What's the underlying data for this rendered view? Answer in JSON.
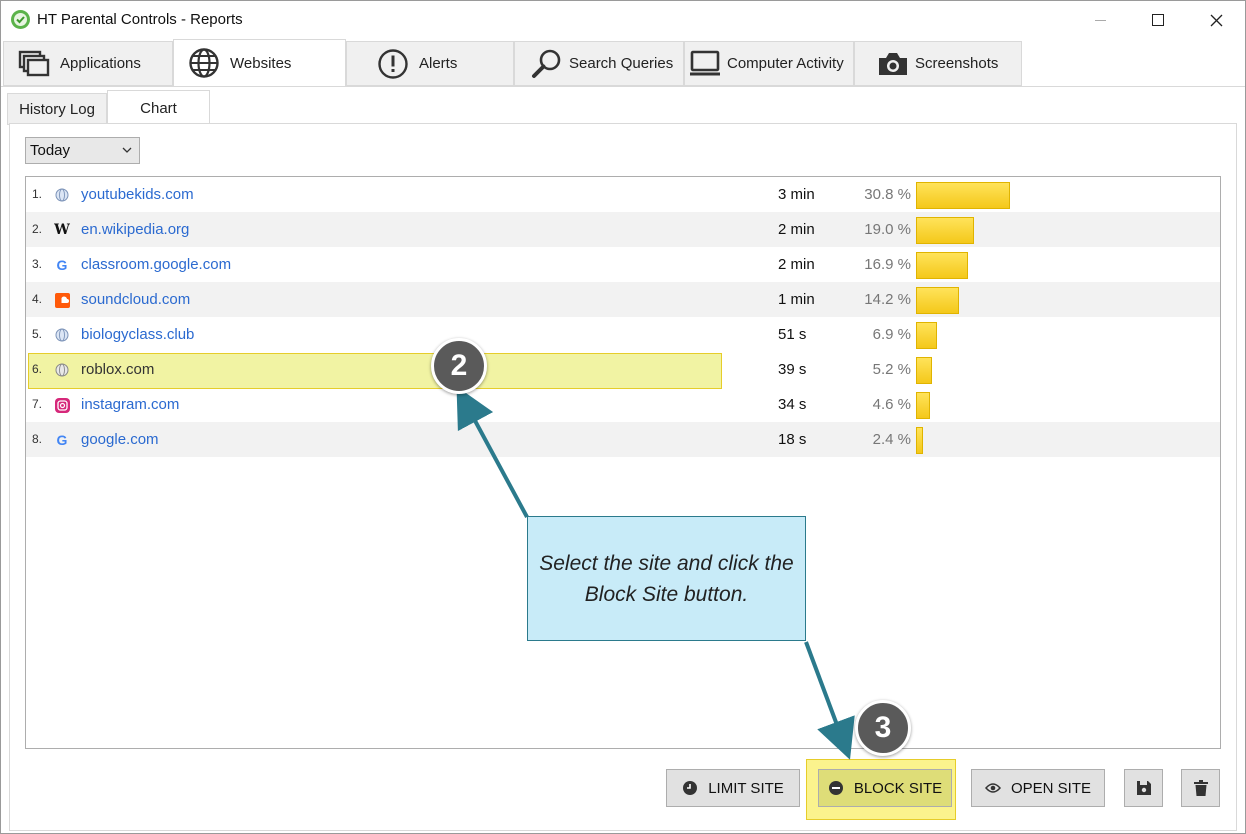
{
  "window": {
    "title": "HT Parental Controls - Reports"
  },
  "main_tabs": [
    {
      "label": "Applications",
      "icon": "windows-stack-icon"
    },
    {
      "label": "Websites",
      "icon": "globe-icon",
      "active": true
    },
    {
      "label": "Alerts",
      "icon": "exclamation-circle-icon"
    },
    {
      "label": "Search Queries",
      "icon": "magnifier-icon"
    },
    {
      "label": "Computer Activity",
      "icon": "monitor-icon"
    },
    {
      "label": "Screenshots",
      "icon": "camera-icon"
    }
  ],
  "sub_tabs": [
    {
      "label": "History Log"
    },
    {
      "label": "Chart",
      "active": true
    }
  ],
  "period_select": {
    "value": "Today"
  },
  "sites": [
    {
      "rank": "1.",
      "domain": "youtubekids.com",
      "duration": "3 min",
      "percent_label": "30.8 %",
      "percent": 30.8,
      "favicon": "globe-icon"
    },
    {
      "rank": "2.",
      "domain": "en.wikipedia.org",
      "duration": "2 min",
      "percent_label": "19.0 %",
      "percent": 19.0,
      "favicon": "wikipedia-icon"
    },
    {
      "rank": "3.",
      "domain": "classroom.google.com",
      "duration": "2 min",
      "percent_label": "16.9 %",
      "percent": 16.9,
      "favicon": "google-icon"
    },
    {
      "rank": "4.",
      "domain": "soundcloud.com",
      "duration": "1 min",
      "percent_label": "14.2 %",
      "percent": 14.2,
      "favicon": "soundcloud-icon"
    },
    {
      "rank": "5.",
      "domain": "biologyclass.club",
      "duration": "51 s",
      "percent_label": "6.9 %",
      "percent": 6.9,
      "favicon": "globe-icon"
    },
    {
      "rank": "6.",
      "domain": "roblox.com",
      "duration": "39 s",
      "percent_label": "5.2 %",
      "percent": 5.2,
      "favicon": "globe-icon",
      "selected": true
    },
    {
      "rank": "7.",
      "domain": "instagram.com",
      "duration": "34 s",
      "percent_label": "4.6 %",
      "percent": 4.6,
      "favicon": "instagram-icon"
    },
    {
      "rank": "8.",
      "domain": "google.com",
      "duration": "18 s",
      "percent_label": "2.4 %",
      "percent": 2.4,
      "favicon": "google-icon"
    }
  ],
  "actions": {
    "limit_label": "LIMIT SITE",
    "block_label": "BLOCK SITE",
    "open_label": "OPEN SITE",
    "save_icon": "save-icon",
    "delete_icon": "trash-icon"
  },
  "callouts": {
    "step2": "2",
    "step3": "3",
    "note": "Select the site and click the Block Site button."
  },
  "colors": {
    "bar": "#f4c81a",
    "link": "#2b6ad0",
    "highlight": "#eef08c",
    "note_bg": "#c8ebf8",
    "arrow": "#2b7a8c",
    "badge": "#5a5a5a"
  }
}
